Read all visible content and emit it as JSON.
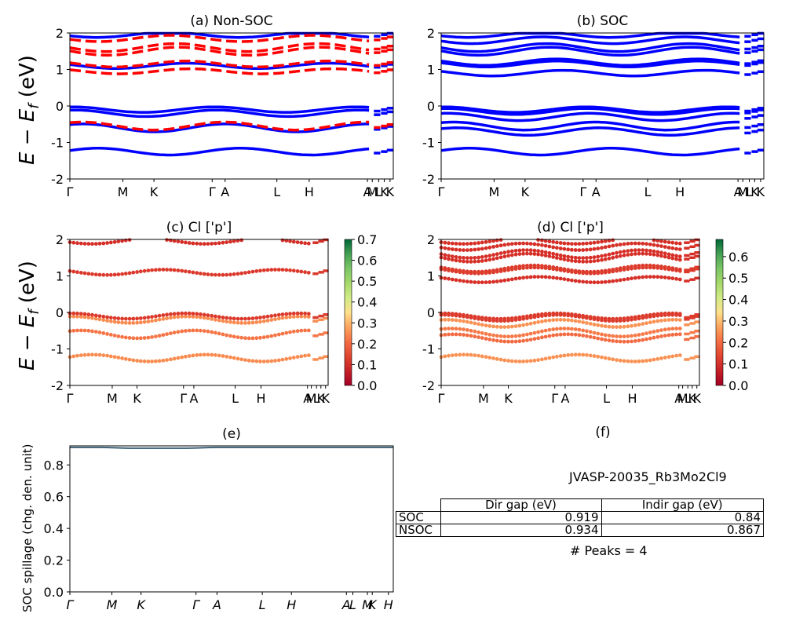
{
  "figure": {
    "big_ylabel": "E − E_f (eV)",
    "kpath_labels_full": [
      "Γ",
      "M",
      "K",
      "Γ",
      "A",
      "L",
      "H",
      "A",
      "|",
      "M",
      "L",
      "|",
      "K",
      "|",
      "H",
      "K"
    ],
    "kpath_labels_simple": [
      "Γ",
      "M",
      "K",
      "Γ",
      "A",
      "L",
      "H",
      "A",
      "M",
      "L",
      "K",
      "K"
    ]
  },
  "chart_data": [
    {
      "id": "a",
      "type": "line",
      "title": "(a) Non-SOC",
      "ylabel": "E − E_f (eV)",
      "ylim": [
        -2,
        2
      ],
      "yticks": [
        -2,
        -1,
        0,
        1,
        2
      ],
      "xticks": [
        "Γ",
        "M",
        "K",
        "Γ",
        "A",
        "L",
        "H",
        "A",
        "M",
        "L",
        "K",
        "K"
      ],
      "grid": false,
      "series": [
        {
          "color": "#0000ff",
          "style": "solid",
          "bands": [
            -1.25,
            -0.6,
            -0.2,
            -0.1,
            1.1,
            1.95
          ]
        },
        {
          "color": "#ff0000",
          "style": "dashed",
          "bands": [
            -0.55,
            0.95,
            1.15,
            1.5,
            1.6,
            1.85
          ]
        }
      ]
    },
    {
      "id": "b",
      "type": "line",
      "title": "(b) SOC",
      "ylim": [
        -2,
        2
      ],
      "yticks": [
        -2,
        -1,
        0,
        1,
        2
      ],
      "xticks": [
        "Γ",
        "M",
        "K",
        "Γ",
        "A",
        "L",
        "H",
        "A",
        "M",
        "L",
        "K",
        "K"
      ],
      "grid": false,
      "series": [
        {
          "color": "#0000ff",
          "style": "solid",
          "bands": [
            -1.25,
            -0.7,
            -0.55,
            -0.3,
            -0.15,
            -0.1,
            0.9,
            1.15,
            1.2,
            1.5,
            1.6,
            1.8,
            1.95
          ]
        }
      ]
    },
    {
      "id": "c",
      "type": "scatter",
      "title": "(c)  Cl ['p']",
      "ylabel": "E − E_f (eV)",
      "ylim": [
        -2,
        2
      ],
      "yticks": [
        -2,
        -1,
        0,
        1,
        2
      ],
      "xticks": [
        "Γ",
        "M",
        "K",
        "Γ",
        "A",
        "L",
        "H",
        "A",
        "M",
        "L",
        "K",
        "K"
      ],
      "colorbar": {
        "min": 0.0,
        "max": 0.7,
        "ticks": [
          0.0,
          0.1,
          0.2,
          0.3,
          0.4,
          0.5,
          0.6,
          0.7
        ],
        "cmap": "RdYlGn"
      },
      "bands": [
        {
          "energy": -1.25,
          "weight": 0.25
        },
        {
          "energy": -0.6,
          "weight": 0.22
        },
        {
          "energy": -0.2,
          "weight": 0.25
        },
        {
          "energy": -0.1,
          "weight": 0.12
        },
        {
          "energy": 1.1,
          "weight": 0.12
        },
        {
          "energy": 1.95,
          "weight": 0.1
        }
      ]
    },
    {
      "id": "d",
      "type": "scatter",
      "title": "(d) Cl ['p']",
      "ylim": [
        -2,
        2
      ],
      "yticks": [
        -2,
        -1,
        0,
        1,
        2
      ],
      "xticks": [
        "Γ",
        "M",
        "K",
        "Γ",
        "A",
        "L",
        "H",
        "A",
        "M",
        "L",
        "K",
        "K"
      ],
      "colorbar": {
        "min": 0.0,
        "max": 0.68,
        "ticks": [
          0.0,
          0.1,
          0.2,
          0.3,
          0.4,
          0.5,
          0.6
        ],
        "cmap": "RdYlGn"
      },
      "bands": [
        {
          "energy": -1.25,
          "weight": 0.25
        },
        {
          "energy": -0.7,
          "weight": 0.2
        },
        {
          "energy": -0.55,
          "weight": 0.22
        },
        {
          "energy": -0.3,
          "weight": 0.25
        },
        {
          "energy": -0.15,
          "weight": 0.12
        },
        {
          "energy": -0.1,
          "weight": 0.12
        },
        {
          "energy": 0.9,
          "weight": 0.1
        },
        {
          "energy": 1.15,
          "weight": 0.12
        },
        {
          "energy": 1.2,
          "weight": 0.12
        },
        {
          "energy": 1.5,
          "weight": 0.1
        },
        {
          "energy": 1.6,
          "weight": 0.1
        },
        {
          "energy": 1.8,
          "weight": 0.1
        },
        {
          "energy": 1.95,
          "weight": 0.1
        }
      ]
    },
    {
      "id": "e",
      "type": "line",
      "title": "(e)",
      "ylabel": "SOC spillage (chg. den. unit)",
      "ylim": [
        0.0,
        0.92
      ],
      "yticks": [
        0.0,
        0.2,
        0.4,
        0.6,
        0.8
      ],
      "xticks": [
        "Γ",
        "M",
        "K",
        "Γ",
        "A",
        "L",
        "H",
        "A",
        "L",
        "M",
        "K",
        "H"
      ],
      "series": [
        {
          "color": "#0b3d5c",
          "values": [
            0.91,
            0.91,
            0.905,
            0.905,
            0.905,
            0.91,
            0.91,
            0.91,
            0.91,
            0.91,
            0.91,
            0.91
          ]
        }
      ]
    },
    {
      "id": "f",
      "type": "table",
      "title": "(f)",
      "material": "JVASP-20035_Rb3Mo2Cl9",
      "columns": [
        "Dir gap (eV)",
        "Indir gap (eV)"
      ],
      "rows": [
        {
          "label": "SOC",
          "dir": "0.919",
          "indir": "0.84"
        },
        {
          "label": "NSOC",
          "dir": "0.934",
          "indir": "0.867"
        }
      ],
      "peaks": "# Peaks = 4"
    }
  ]
}
